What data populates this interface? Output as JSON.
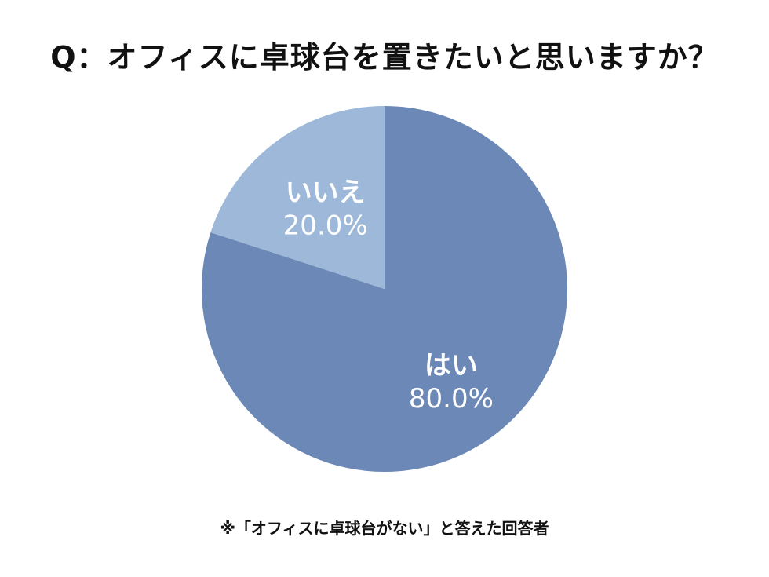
{
  "chart_data": {
    "type": "pie",
    "title": "Q：オフィスに卓球台を置きたいと思いますか？",
    "slices": [
      {
        "label": "はい",
        "value": 80.0,
        "value_label": "80.0%",
        "color": "#6b88b6"
      },
      {
        "label": "いいえ",
        "value": 20.0,
        "value_label": "20.0%",
        "color": "#9db8d8"
      }
    ],
    "start": "12 o'clock, clockwise",
    "footnote": "※「オフィスに卓球台がない」と答えた回答者"
  }
}
